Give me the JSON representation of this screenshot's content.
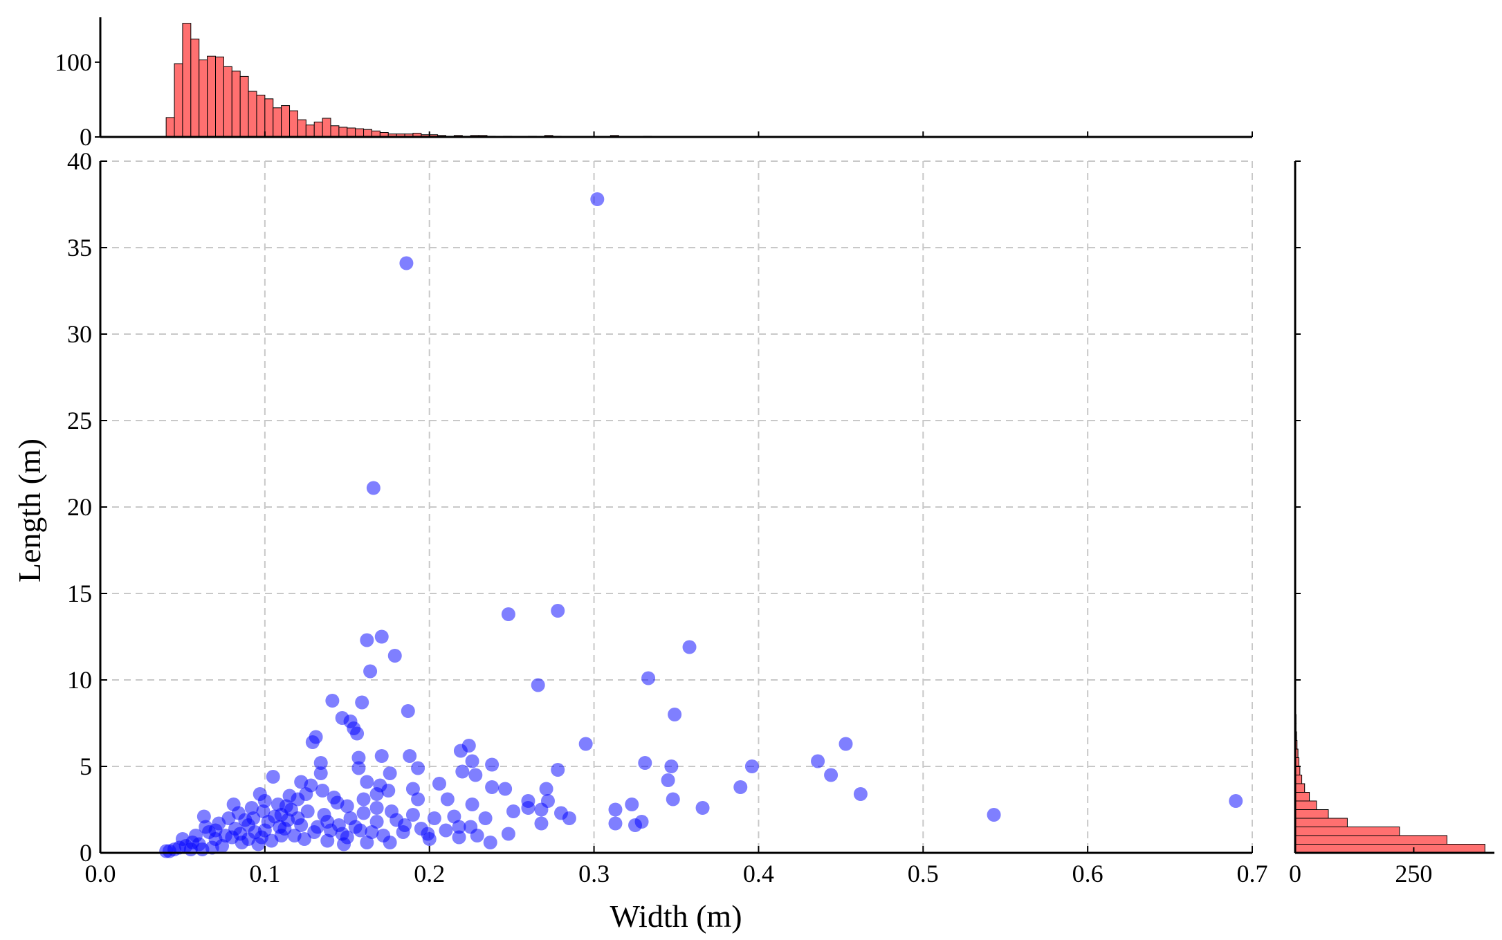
{
  "chart_data": {
    "type": "scatter",
    "title": "",
    "xlabel": "Width (m)",
    "ylabel": "Length (m)",
    "xlim": [
      0.0,
      0.7
    ],
    "ylim": [
      0,
      40
    ],
    "x_ticks": [
      "0.0",
      "0.1",
      "0.2",
      "0.3",
      "0.4",
      "0.5",
      "0.6",
      "0.7"
    ],
    "y_ticks": [
      "0",
      "5",
      "10",
      "15",
      "20",
      "25",
      "30",
      "35",
      "40"
    ],
    "grid": true,
    "scatter": {
      "color": "#0000ff",
      "alpha": 0.5,
      "points": [
        [
          0.302,
          37.8
        ],
        [
          0.186,
          34.1
        ],
        [
          0.166,
          21.1
        ],
        [
          0.278,
          14.0
        ],
        [
          0.248,
          13.8
        ],
        [
          0.358,
          11.9
        ],
        [
          0.171,
          12.5
        ],
        [
          0.162,
          12.3
        ],
        [
          0.179,
          11.4
        ],
        [
          0.164,
          10.5
        ],
        [
          0.333,
          10.1
        ],
        [
          0.266,
          9.7
        ],
        [
          0.141,
          8.8
        ],
        [
          0.159,
          8.7
        ],
        [
          0.187,
          8.2
        ],
        [
          0.349,
          8.0
        ],
        [
          0.147,
          7.8
        ],
        [
          0.152,
          7.6
        ],
        [
          0.154,
          7.2
        ],
        [
          0.156,
          6.9
        ],
        [
          0.131,
          6.7
        ],
        [
          0.129,
          6.4
        ],
        [
          0.453,
          6.3
        ],
        [
          0.295,
          6.3
        ],
        [
          0.224,
          6.2
        ],
        [
          0.219,
          5.9
        ],
        [
          0.171,
          5.6
        ],
        [
          0.188,
          5.6
        ],
        [
          0.157,
          5.5
        ],
        [
          0.436,
          5.3
        ],
        [
          0.226,
          5.3
        ],
        [
          0.134,
          5.2
        ],
        [
          0.331,
          5.2
        ],
        [
          0.238,
          5.1
        ],
        [
          0.396,
          5.0
        ],
        [
          0.347,
          5.0
        ],
        [
          0.157,
          4.9
        ],
        [
          0.193,
          4.9
        ],
        [
          0.278,
          4.8
        ],
        [
          0.22,
          4.7
        ],
        [
          0.176,
          4.6
        ],
        [
          0.134,
          4.6
        ],
        [
          0.444,
          4.5
        ],
        [
          0.228,
          4.5
        ],
        [
          0.105,
          4.4
        ],
        [
          0.345,
          4.2
        ],
        [
          0.206,
          4.0
        ],
        [
          0.162,
          4.1
        ],
        [
          0.17,
          3.9
        ],
        [
          0.389,
          3.8
        ],
        [
          0.238,
          3.8
        ],
        [
          0.246,
          3.7
        ],
        [
          0.271,
          3.7
        ],
        [
          0.19,
          3.7
        ],
        [
          0.175,
          3.6
        ],
        [
          0.462,
          3.4
        ],
        [
          0.097,
          3.4
        ],
        [
          0.125,
          3.4
        ],
        [
          0.348,
          3.1
        ],
        [
          0.211,
          3.1
        ],
        [
          0.193,
          3.1
        ],
        [
          0.26,
          3.0
        ],
        [
          0.272,
          3.0
        ],
        [
          0.69,
          3.0
        ],
        [
          0.081,
          2.8
        ],
        [
          0.144,
          2.9
        ],
        [
          0.168,
          2.6
        ],
        [
          0.366,
          2.6
        ],
        [
          0.26,
          2.6
        ],
        [
          0.268,
          2.5
        ],
        [
          0.226,
          2.8
        ],
        [
          0.323,
          2.8
        ],
        [
          0.313,
          2.5
        ],
        [
          0.28,
          2.3
        ],
        [
          0.251,
          2.4
        ],
        [
          0.543,
          2.2
        ],
        [
          0.285,
          2.0
        ],
        [
          0.234,
          2.0
        ],
        [
          0.11,
          2.2
        ],
        [
          0.203,
          2.0
        ],
        [
          0.177,
          2.4
        ],
        [
          0.268,
          1.7
        ],
        [
          0.313,
          1.7
        ],
        [
          0.329,
          1.8
        ],
        [
          0.325,
          1.6
        ],
        [
          0.063,
          2.1
        ],
        [
          0.152,
          2.0
        ],
        [
          0.138,
          1.8
        ],
        [
          0.218,
          1.5
        ],
        [
          0.225,
          1.5
        ],
        [
          0.248,
          1.1
        ],
        [
          0.229,
          1.0
        ],
        [
          0.237,
          0.6
        ],
        [
          0.176,
          0.6
        ],
        [
          0.218,
          0.9
        ],
        [
          0.199,
          1.1
        ],
        [
          0.185,
          1.6
        ],
        [
          0.168,
          1.8
        ],
        [
          0.158,
          1.3
        ],
        [
          0.147,
          1.1
        ],
        [
          0.13,
          1.2
        ],
        [
          0.122,
          1.6
        ],
        [
          0.116,
          2.5
        ],
        [
          0.108,
          2.8
        ],
        [
          0.1,
          3.0
        ],
        [
          0.092,
          2.6
        ],
        [
          0.088,
          1.9
        ],
        [
          0.082,
          1.4
        ],
        [
          0.076,
          1.0
        ],
        [
          0.07,
          0.8
        ],
        [
          0.066,
          1.2
        ],
        [
          0.06,
          0.5
        ],
        [
          0.056,
          0.6
        ],
        [
          0.052,
          0.4
        ],
        [
          0.048,
          0.3
        ],
        [
          0.045,
          0.2
        ],
        [
          0.042,
          0.1
        ],
        [
          0.04,
          0.1
        ],
        [
          0.05,
          0.8
        ],
        [
          0.058,
          1.0
        ],
        [
          0.064,
          1.5
        ],
        [
          0.072,
          1.7
        ],
        [
          0.078,
          2.0
        ],
        [
          0.084,
          2.3
        ],
        [
          0.09,
          1.6
        ],
        [
          0.094,
          1.2
        ],
        [
          0.098,
          0.9
        ],
        [
          0.102,
          1.8
        ],
        [
          0.106,
          2.1
        ],
        [
          0.112,
          1.4
        ],
        [
          0.118,
          1.0
        ],
        [
          0.12,
          2.0
        ],
        [
          0.126,
          2.4
        ],
        [
          0.132,
          1.5
        ],
        [
          0.136,
          2.2
        ],
        [
          0.14,
          1.3
        ],
        [
          0.145,
          1.6
        ],
        [
          0.15,
          0.9
        ],
        [
          0.155,
          1.5
        ],
        [
          0.16,
          2.3
        ],
        [
          0.165,
          1.2
        ],
        [
          0.172,
          1.0
        ],
        [
          0.18,
          1.9
        ],
        [
          0.184,
          1.2
        ],
        [
          0.19,
          2.2
        ],
        [
          0.195,
          1.4
        ],
        [
          0.2,
          0.8
        ],
        [
          0.21,
          1.3
        ],
        [
          0.215,
          2.1
        ],
        [
          0.12,
          3.1
        ],
        [
          0.115,
          3.3
        ],
        [
          0.128,
          3.9
        ],
        [
          0.122,
          4.1
        ],
        [
          0.135,
          3.6
        ],
        [
          0.142,
          3.2
        ],
        [
          0.15,
          2.7
        ],
        [
          0.16,
          3.1
        ],
        [
          0.168,
          3.4
        ],
        [
          0.11,
          1.0
        ],
        [
          0.104,
          0.7
        ],
        [
          0.096,
          0.5
        ],
        [
          0.086,
          0.6
        ],
        [
          0.074,
          0.4
        ],
        [
          0.068,
          0.3
        ],
        [
          0.062,
          0.2
        ],
        [
          0.055,
          0.2
        ],
        [
          0.085,
          1.1
        ],
        [
          0.093,
          2.0
        ],
        [
          0.099,
          2.4
        ],
        [
          0.109,
          1.5
        ],
        [
          0.114,
          1.9
        ],
        [
          0.124,
          0.8
        ],
        [
          0.138,
          0.7
        ],
        [
          0.148,
          0.5
        ],
        [
          0.162,
          0.6
        ],
        [
          0.07,
          1.3
        ],
        [
          0.08,
          0.9
        ],
        [
          0.09,
          0.8
        ],
        [
          0.1,
          1.3
        ],
        [
          0.113,
          2.7
        ]
      ]
    },
    "x_histogram": {
      "color": "#ff7070",
      "ylim": [
        0,
        160
      ],
      "y_ticks": [
        "0",
        "100"
      ],
      "bin_start": 0.04,
      "bin_width": 0.005,
      "counts": [
        26,
        98,
        152,
        131,
        103,
        108,
        107,
        94,
        88,
        81,
        61,
        56,
        51,
        39,
        42,
        35,
        23,
        16,
        20,
        25,
        15,
        13,
        12,
        11,
        10,
        8,
        6,
        4,
        4,
        4,
        5,
        3,
        3,
        2,
        1,
        2,
        1,
        2,
        2,
        1,
        0,
        1,
        0,
        0,
        1,
        0,
        2,
        1,
        0,
        0,
        0,
        0,
        0,
        0,
        2,
        0,
        0,
        0,
        1
      ]
    },
    "y_histogram": {
      "color": "#ff7070",
      "xlim": [
        0,
        420
      ],
      "x_ticks": [
        "0",
        "250"
      ],
      "bin_start": 0.0,
      "bin_width": 0.5,
      "counts": [
        400,
        320,
        220,
        110,
        70,
        45,
        30,
        20,
        14,
        10,
        8,
        6,
        4,
        3,
        2,
        2
      ]
    }
  }
}
